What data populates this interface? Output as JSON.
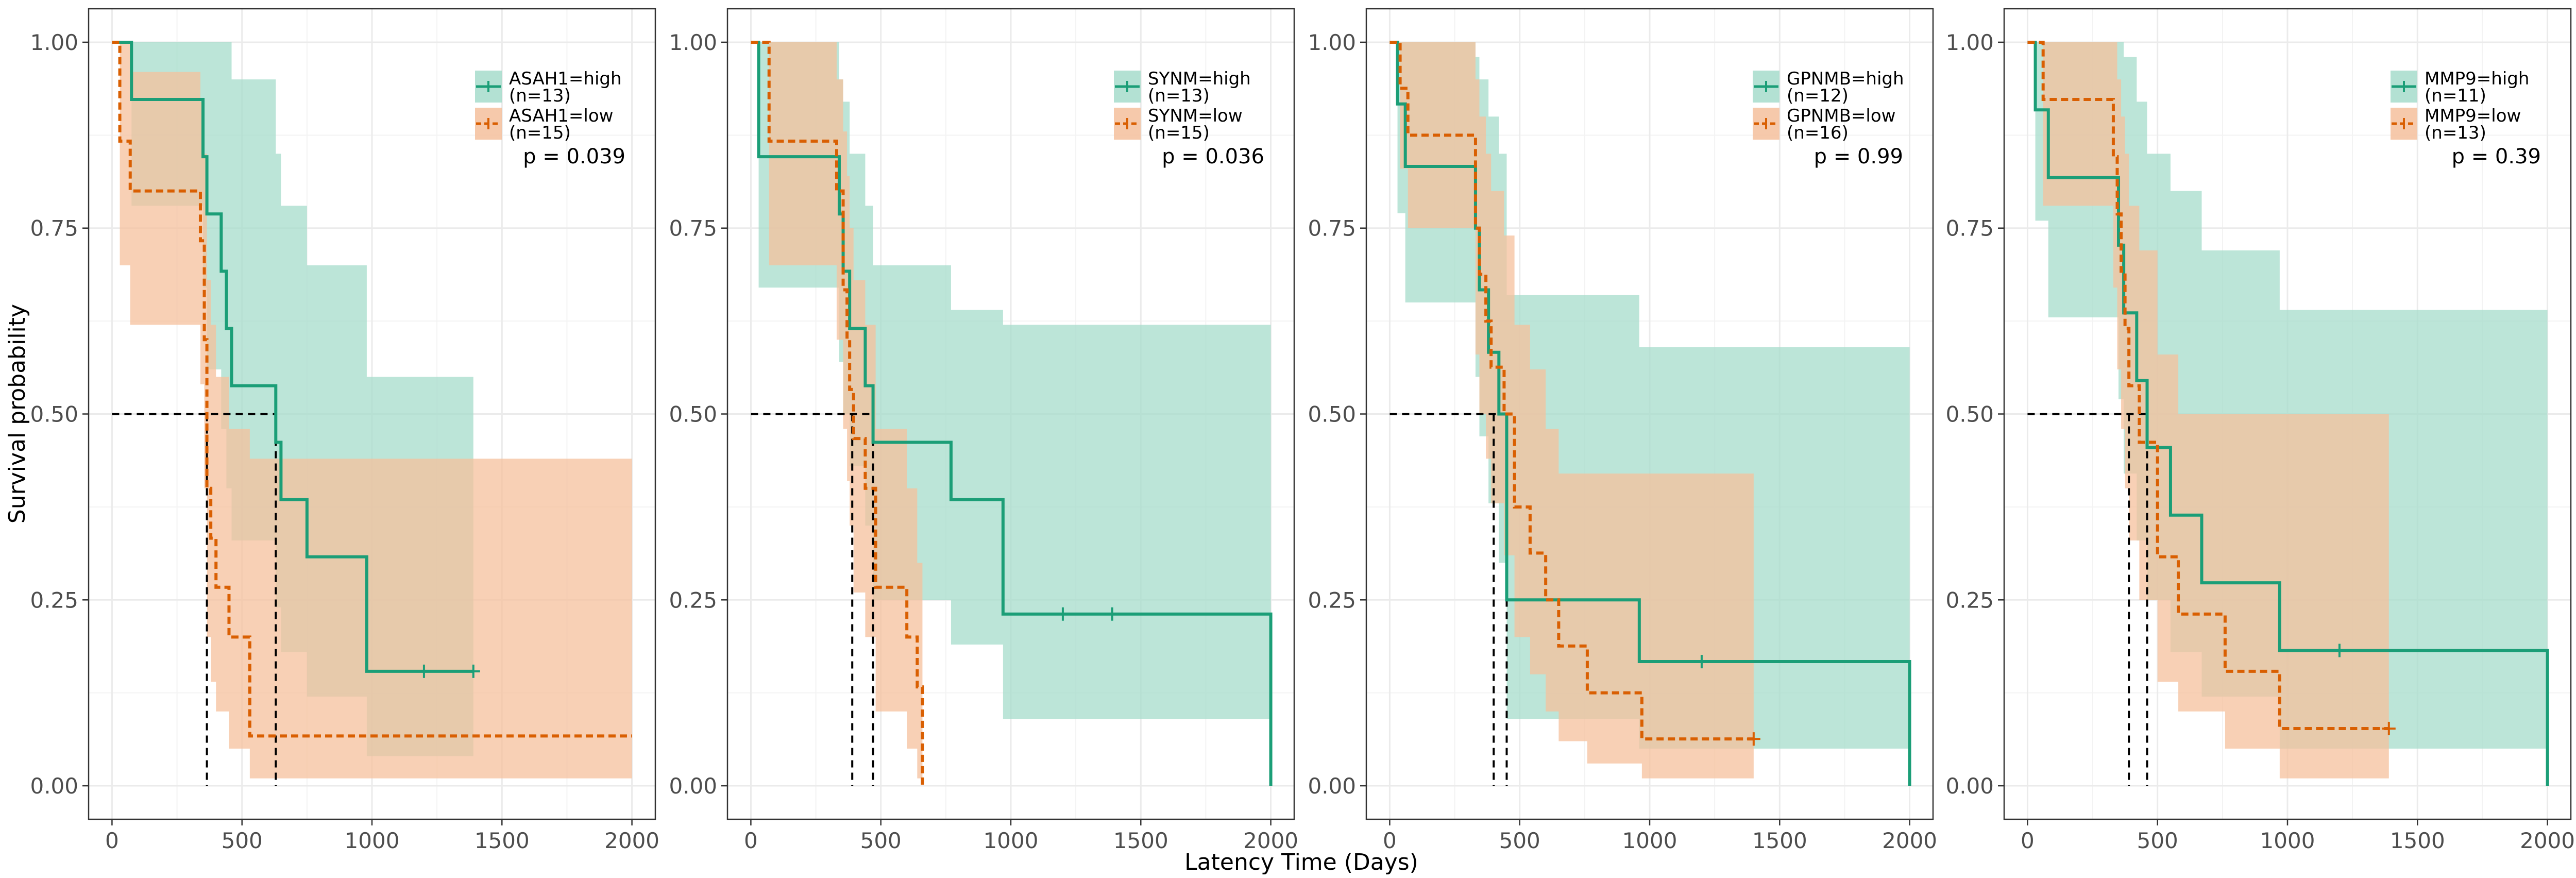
{
  "chart_data": {
    "type": "line",
    "xlabel": "Latency Time (Days)",
    "ylabel": "Survival probability",
    "xlim": [
      0,
      2000
    ],
    "ylim": [
      0,
      1
    ],
    "x_ticks": [
      0,
      500,
      1000,
      1500,
      2000
    ],
    "y_ticks": [
      0,
      0.25,
      0.5,
      0.75,
      1
    ],
    "y_tick_labels": [
      "0.00",
      "0.25",
      "0.50",
      "0.75",
      "1.00"
    ],
    "grid": true,
    "legend_position": "top-right",
    "colors": {
      "high": "#1b9e77",
      "low": "#d95f02",
      "high_band": "#a6dccb",
      "low_band": "#f5c09c"
    },
    "panels": [
      {
        "p_value": "p = 0.039",
        "median_x": [
          365,
          630
        ],
        "series": [
          {
            "name": "ASAH1=high",
            "n_label": "(n=13)",
            "group": "high",
            "x": [
              0,
              75,
              350,
              365,
              380,
              420,
              440,
              460,
              630,
              650,
              750,
              980,
              1390
            ],
            "y": [
              1.0,
              0.923,
              0.846,
              0.769,
              0.769,
              0.692,
              0.615,
              0.538,
              0.462,
              0.385,
              0.308,
              0.154,
              0.154
            ],
            "upper": [
              1.0,
              1.0,
              1.0,
              1.0,
              1.0,
              1.0,
              1.0,
              0.95,
              0.85,
              0.78,
              0.7,
              0.55,
              0.55
            ],
            "lower": [
              1.0,
              0.78,
              0.67,
              0.56,
              0.56,
              0.48,
              0.4,
              0.33,
              0.24,
              0.18,
              0.12,
              0.04,
              0.04
            ],
            "censor_x": [
              1200,
              1390
            ],
            "censor_y": [
              0.154,
              0.154
            ]
          },
          {
            "name": "ASAH1=low",
            "n_label": "(n=15)",
            "group": "low",
            "x": [
              0,
              30,
              70,
              340,
              355,
              365,
              380,
              400,
              450,
              530,
              2000
            ],
            "y": [
              1.0,
              0.867,
              0.8,
              0.733,
              0.6,
              0.4,
              0.333,
              0.267,
              0.2,
              0.067,
              0.067
            ],
            "upper": [
              1.0,
              1.0,
              0.96,
              0.92,
              0.85,
              0.68,
              0.62,
              0.55,
              0.48,
              0.44,
              0.44
            ],
            "lower": [
              1.0,
              0.7,
              0.62,
              0.54,
              0.4,
              0.2,
              0.14,
              0.1,
              0.05,
              0.01,
              0.01
            ],
            "censor_x": [],
            "censor_y": []
          }
        ]
      },
      {
        "p_value": "p = 0.036",
        "median_x": [
          390,
          470
        ],
        "series": [
          {
            "name": "SYNM=high",
            "n_label": "(n=13)",
            "group": "high",
            "x": [
              0,
              30,
              340,
              355,
              380,
              440,
              470,
              770,
              970,
              2000
            ],
            "y": [
              1.0,
              0.846,
              0.769,
              0.692,
              0.615,
              0.538,
              0.462,
              0.385,
              0.231,
              0.0
            ],
            "upper": [
              1.0,
              1.0,
              0.95,
              0.92,
              0.85,
              0.78,
              0.7,
              0.64,
              0.62,
              0.62
            ],
            "lower": [
              1.0,
              0.67,
              0.57,
              0.5,
              0.43,
              0.35,
              0.25,
              0.19,
              0.09,
              0.0
            ],
            "censor_x": [
              1200,
              1390
            ],
            "censor_y": [
              0.231,
              0.231
            ]
          },
          {
            "name": "SYNM=low",
            "n_label": "(n=15)",
            "group": "low",
            "x": [
              0,
              70,
              330,
              355,
              370,
              380,
              395,
              440,
              480,
              600,
              640,
              660
            ],
            "y": [
              1.0,
              0.867,
              0.8,
              0.667,
              0.6,
              0.533,
              0.467,
              0.4,
              0.267,
              0.2,
              0.133,
              0.0
            ],
            "upper": [
              1.0,
              1.0,
              0.95,
              0.88,
              0.82,
              0.75,
              0.68,
              0.62,
              0.48,
              0.4,
              0.3,
              0.3
            ],
            "lower": [
              1.0,
              0.7,
              0.6,
              0.48,
              0.41,
              0.35,
              0.26,
              0.2,
              0.1,
              0.05,
              0.01,
              0.0
            ],
            "censor_x": [],
            "censor_y": []
          }
        ]
      },
      {
        "p_value": "p = 0.99",
        "median_x": [
          400,
          450
        ],
        "series": [
          {
            "name": "GPNMB=high",
            "n_label": "(n=12)",
            "group": "high",
            "x": [
              0,
              30,
              60,
              330,
              345,
              380,
              420,
              450,
              960,
              2000
            ],
            "y": [
              1.0,
              0.917,
              0.833,
              0.75,
              0.667,
              0.583,
              0.5,
              0.25,
              0.167,
              0.0
            ],
            "upper": [
              1.0,
              1.0,
              1.0,
              0.98,
              0.95,
              0.9,
              0.85,
              0.66,
              0.59,
              0.59
            ],
            "lower": [
              1.0,
              0.77,
              0.65,
              0.55,
              0.47,
              0.38,
              0.3,
              0.09,
              0.05,
              0.0
            ],
            "censor_x": [
              1200
            ],
            "censor_y": [
              0.167
            ]
          },
          {
            "name": "GPNMB=low",
            "n_label": "(n=16)",
            "group": "low",
            "x": [
              0,
              40,
              70,
              330,
              345,
              370,
              390,
              440,
              480,
              540,
              600,
              650,
              760,
              970,
              1400
            ],
            "y": [
              1.0,
              0.938,
              0.875,
              0.75,
              0.688,
              0.625,
              0.563,
              0.5,
              0.375,
              0.313,
              0.25,
              0.188,
              0.125,
              0.063,
              0.063
            ],
            "upper": [
              1.0,
              1.0,
              1.0,
              0.95,
              0.9,
              0.85,
              0.8,
              0.74,
              0.62,
              0.56,
              0.48,
              0.42,
              0.42,
              0.42,
              0.42
            ],
            "lower": [
              1.0,
              0.83,
              0.75,
              0.58,
              0.5,
              0.44,
              0.38,
              0.31,
              0.2,
              0.15,
              0.1,
              0.06,
              0.03,
              0.01,
              0.01
            ],
            "censor_x": [
              1400
            ],
            "censor_y": [
              0.063
            ]
          }
        ]
      },
      {
        "p_value": "p = 0.39",
        "median_x": [
          390,
          460
        ],
        "series": [
          {
            "name": "MMP9=high",
            "n_label": "(n=11)",
            "group": "high",
            "x": [
              0,
              30,
              80,
              350,
              370,
              420,
              460,
              550,
              670,
              970,
              2000
            ],
            "y": [
              1.0,
              0.909,
              0.818,
              0.727,
              0.636,
              0.545,
              0.455,
              0.364,
              0.273,
              0.182,
              0.0
            ],
            "upper": [
              1.0,
              1.0,
              1.0,
              1.0,
              0.98,
              0.92,
              0.85,
              0.8,
              0.72,
              0.64,
              0.64
            ],
            "lower": [
              1.0,
              0.76,
              0.63,
              0.52,
              0.42,
              0.33,
              0.25,
              0.18,
              0.12,
              0.05,
              0.0
            ],
            "censor_x": [
              1200
            ],
            "censor_y": [
              0.182
            ]
          },
          {
            "name": "MMP9=low",
            "n_label": "(n=13)",
            "group": "low",
            "x": [
              0,
              60,
              330,
              345,
              360,
              375,
              390,
              430,
              500,
              580,
              760,
              970,
              1390
            ],
            "y": [
              1.0,
              0.923,
              0.846,
              0.769,
              0.692,
              0.615,
              0.538,
              0.462,
              0.308,
              0.231,
              0.154,
              0.077,
              0.077
            ],
            "upper": [
              1.0,
              1.0,
              1.0,
              0.95,
              0.9,
              0.85,
              0.78,
              0.72,
              0.58,
              0.5,
              0.5,
              0.5,
              0.5
            ],
            "lower": [
              1.0,
              0.78,
              0.67,
              0.56,
              0.48,
              0.4,
              0.33,
              0.25,
              0.14,
              0.1,
              0.05,
              0.01,
              0.01
            ],
            "censor_x": [
              1390
            ],
            "censor_y": [
              0.077
            ]
          }
        ]
      }
    ]
  }
}
